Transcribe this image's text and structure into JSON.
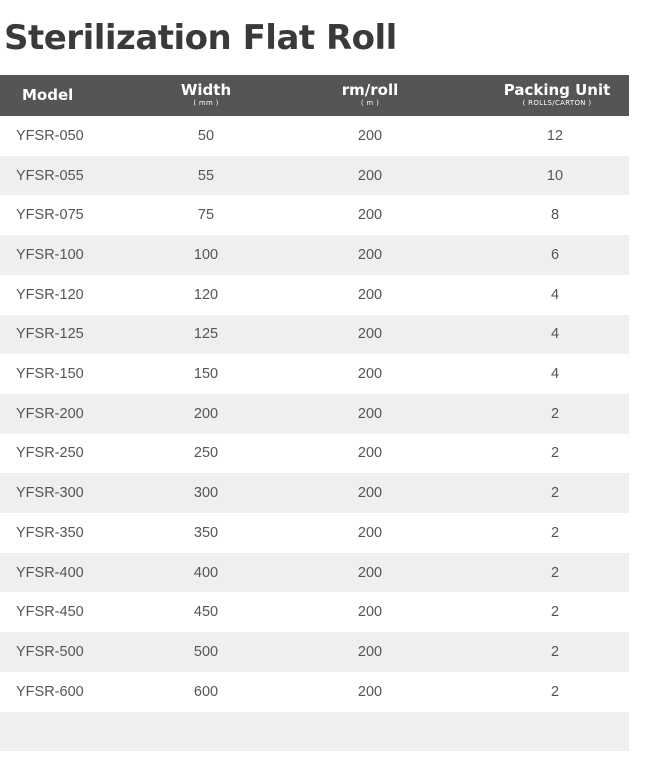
{
  "title": "Sterilization Flat Roll",
  "table": {
    "headers": {
      "model": "Model",
      "width": "Width",
      "width_unit": "( mm )",
      "rm": "rm/roll",
      "rm_unit": "( m )",
      "pack": "Packing Unit",
      "pack_unit": "( ROLLS/CARTON )"
    },
    "rows": [
      {
        "model": "YFSR-050",
        "width": "50",
        "rm": "200",
        "pack": "12"
      },
      {
        "model": "YFSR-055",
        "width": "55",
        "rm": "200",
        "pack": "10"
      },
      {
        "model": "YFSR-075",
        "width": "75",
        "rm": "200",
        "pack": "8"
      },
      {
        "model": "YFSR-100",
        "width": "100",
        "rm": "200",
        "pack": "6"
      },
      {
        "model": "YFSR-120",
        "width": "120",
        "rm": "200",
        "pack": "4"
      },
      {
        "model": "YFSR-125",
        "width": "125",
        "rm": "200",
        "pack": "4"
      },
      {
        "model": "YFSR-150",
        "width": "150",
        "rm": "200",
        "pack": "4"
      },
      {
        "model": "YFSR-200",
        "width": "200",
        "rm": "200",
        "pack": "2"
      },
      {
        "model": "YFSR-250",
        "width": "250",
        "rm": "200",
        "pack": "2"
      },
      {
        "model": "YFSR-300",
        "width": "300",
        "rm": "200",
        "pack": "2"
      },
      {
        "model": "YFSR-350",
        "width": "350",
        "rm": "200",
        "pack": "2"
      },
      {
        "model": "YFSR-400",
        "width": "400",
        "rm": "200",
        "pack": "2"
      },
      {
        "model": "YFSR-450",
        "width": "450",
        "rm": "200",
        "pack": "2"
      },
      {
        "model": "YFSR-500",
        "width": "500",
        "rm": "200",
        "pack": "2"
      },
      {
        "model": "YFSR-600",
        "width": "600",
        "rm": "200",
        "pack": "2"
      }
    ]
  },
  "colors": {
    "header_bg": "#555555",
    "alt_row_bg": "#efefef",
    "title": "#3a3a3a"
  }
}
